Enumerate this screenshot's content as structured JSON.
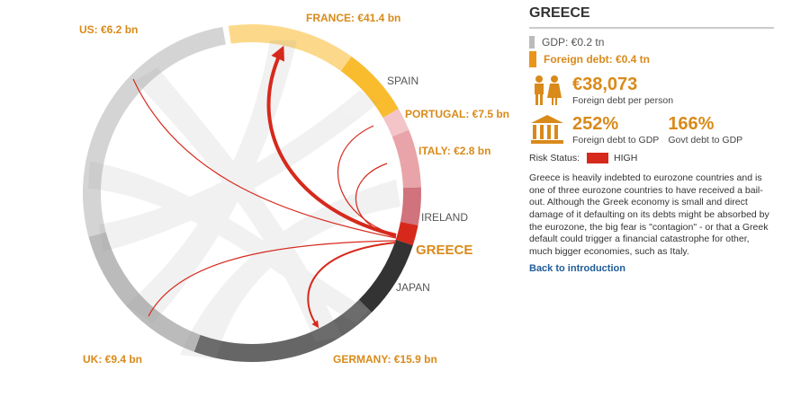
{
  "diagram": {
    "segments": [
      {
        "label": "US: €6.2 bn"
      },
      {
        "label": "FRANCE: €41.4 bn"
      },
      {
        "label": "SPAIN"
      },
      {
        "label": "PORTUGAL: €7.5 bn"
      },
      {
        "label": "ITALY: €2.8 bn"
      },
      {
        "label": "IRELAND"
      },
      {
        "label": "GREECE"
      },
      {
        "label": "JAPAN"
      },
      {
        "label": "GERMANY: €15.9 bn"
      },
      {
        "label": "UK: €9.4 bn"
      }
    ]
  },
  "panel": {
    "title": "GREECE",
    "gdp": "GDP: €0.2 tn",
    "foreign_debt": "Foreign debt: €0.4 tn",
    "per_person": {
      "value": "€38,073",
      "label": "Foreign debt per person"
    },
    "foreign_debt_gdp": {
      "value": "252%",
      "label": "Foreign debt to GDP"
    },
    "govt_debt_gdp": {
      "value": "166%",
      "label": "Govt debt to GDP"
    },
    "risk_label": "Risk Status:",
    "risk_value": "HIGH",
    "text": "Greece is heavily indebted to eurozone countries and is one of three eurozone countries to have received a bail-out. Although the Greek economy is small and direct damage of it defaulting on its debts might be absorbed by the eurozone, the big fear is \"contagion\" - or that a Greek default could trigger a financial catastrophe for other, much bigger economies, such as Italy.",
    "link": "Back to introduction"
  }
}
